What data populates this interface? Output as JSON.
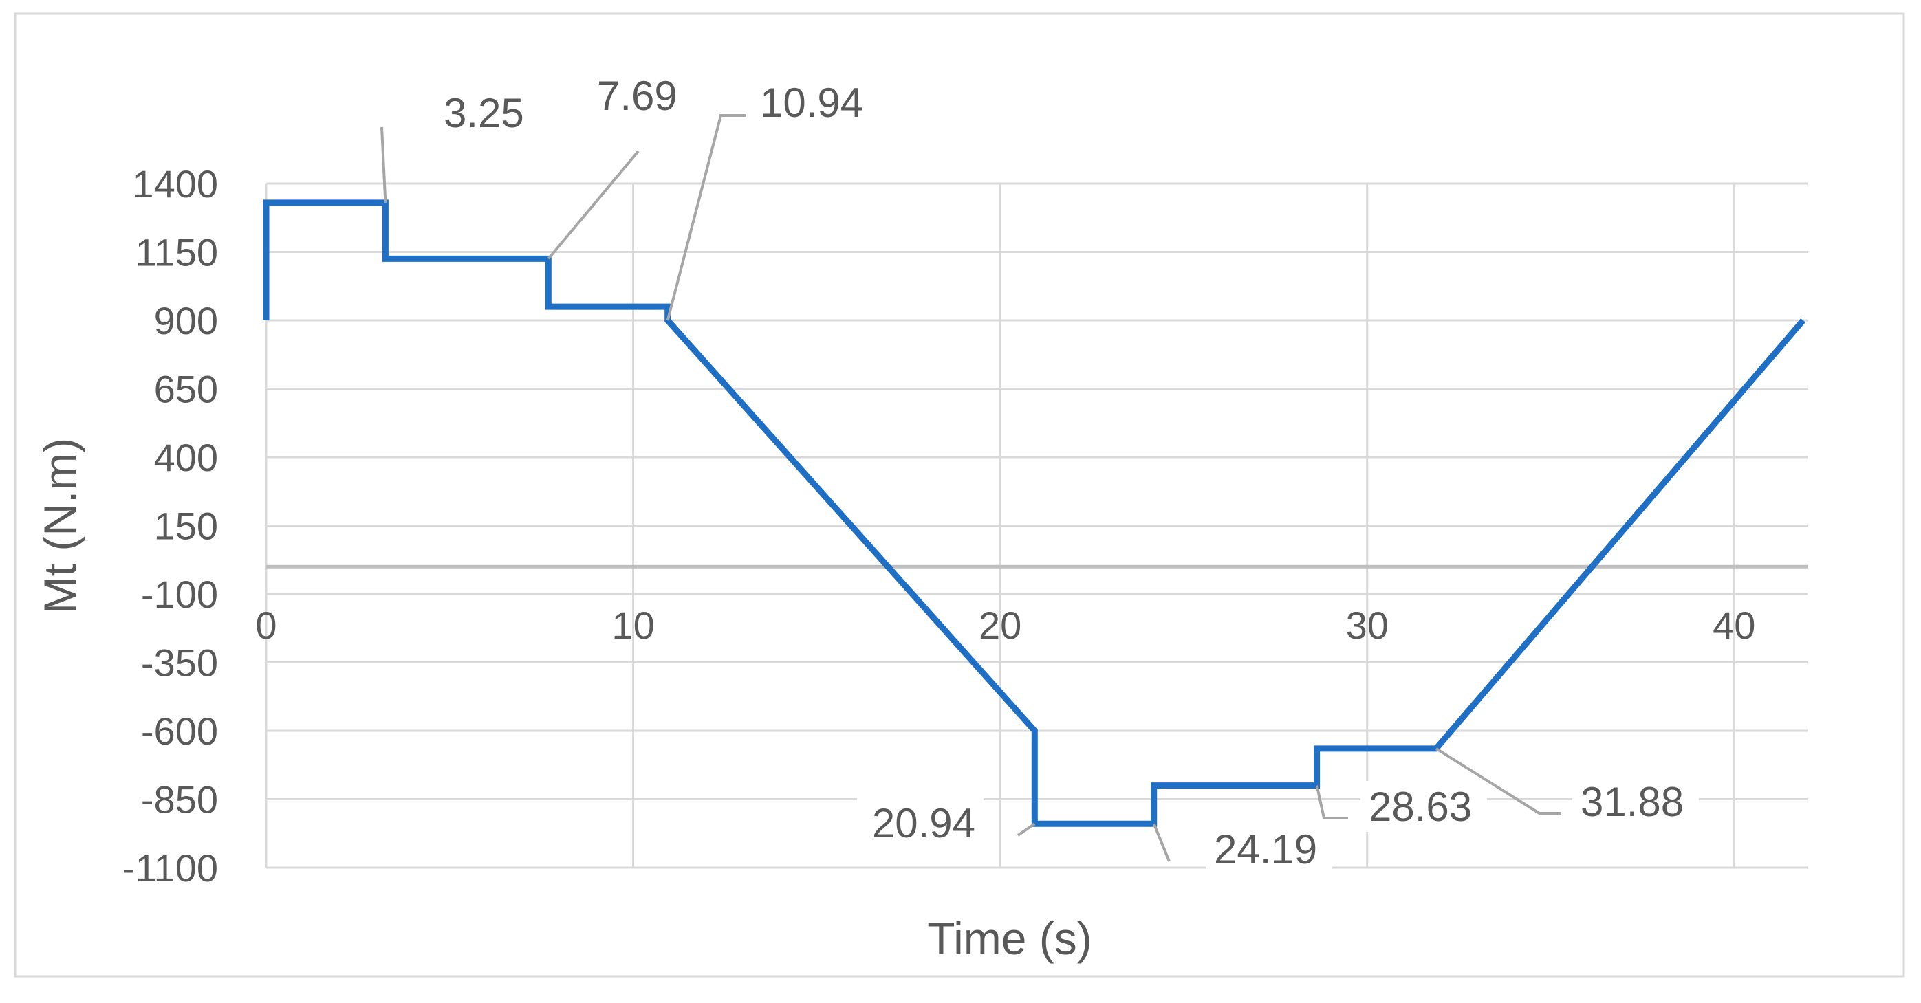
{
  "chart_data": {
    "type": "line",
    "title": "",
    "xlabel": "Time (s)",
    "ylabel": "Mt (N.m)",
    "xlim": [
      0,
      42
    ],
    "ylim": [
      -1100,
      1400
    ],
    "x_ticks": [
      {
        "value": 0,
        "label": "0"
      },
      {
        "value": 10,
        "label": "10"
      },
      {
        "value": 20,
        "label": "20"
      },
      {
        "value": 30,
        "label": "30"
      },
      {
        "value": 40,
        "label": "40"
      }
    ],
    "y_ticks": [
      {
        "value": 1400,
        "label": "1400"
      },
      {
        "value": 1150,
        "label": "1150"
      },
      {
        "value": 900,
        "label": "900"
      },
      {
        "value": 650,
        "label": "650"
      },
      {
        "value": 400,
        "label": "400"
      },
      {
        "value": 150,
        "label": "150"
      },
      {
        "value": -100,
        "label": "-100"
      },
      {
        "value": -350,
        "label": "-350"
      },
      {
        "value": -600,
        "label": "-600"
      },
      {
        "value": -850,
        "label": "-850"
      },
      {
        "value": -1100,
        "label": "-1100"
      }
    ],
    "grid": true,
    "legend": "none",
    "series": [
      {
        "color": "#1f6fc5",
        "points": [
          [
            0,
            900
          ],
          [
            0,
            1330
          ],
          [
            3.25,
            1330
          ],
          [
            3.25,
            1125
          ],
          [
            7.69,
            1125
          ],
          [
            7.69,
            950
          ],
          [
            10.94,
            950
          ],
          [
            10.94,
            900
          ],
          [
            20.94,
            -600
          ],
          [
            20.94,
            -940
          ],
          [
            24.19,
            -940
          ],
          [
            24.19,
            -800
          ],
          [
            28.63,
            -800
          ],
          [
            28.63,
            -665
          ],
          [
            31.88,
            -665
          ],
          [
            41.88,
            900
          ]
        ]
      }
    ],
    "annotations": [
      {
        "label": "3.25",
        "x": 3.25,
        "y": 1330
      },
      {
        "label": "7.69",
        "x": 7.69,
        "y": 1125
      },
      {
        "label": "10.94",
        "x": 10.94,
        "y": 900
      },
      {
        "label": "20.94",
        "x": 20.94,
        "y": -940
      },
      {
        "label": "24.19",
        "x": 24.19,
        "y": -940
      },
      {
        "label": "28.63",
        "x": 28.63,
        "y": -800
      },
      {
        "label": "31.88",
        "x": 31.88,
        "y": -665
      }
    ],
    "colors": {
      "line": "#1f6fc5",
      "grid": "#d9d9d9",
      "zero_axis": "#bfbfbf",
      "text": "#595959",
      "leader": "#a6a6a6",
      "border": "#d9d9d9"
    }
  }
}
